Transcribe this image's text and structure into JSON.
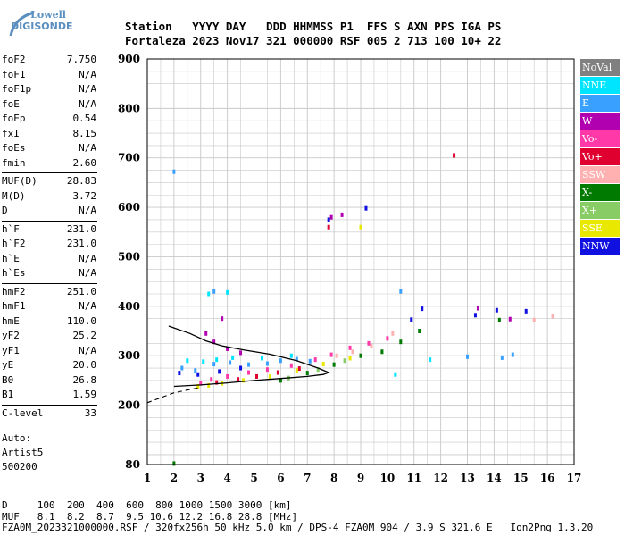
{
  "logo": {
    "brand": "Lowell",
    "product": "DIGISONDE"
  },
  "header": {
    "line1": "Station   YYYY DAY   DDD HHMMSS P1  FFS S AXN PPS IGA PS",
    "line2": "Fortaleza 2023 Nov17 321 000000 RSF 005 2 713 100 10+ 22"
  },
  "params": {
    "group1": [
      {
        "label": "foF2",
        "value": "7.750"
      },
      {
        "label": "foF1",
        "value": "N/A"
      },
      {
        "label": "foF1p",
        "value": "N/A"
      },
      {
        "label": "foE",
        "value": "N/A"
      },
      {
        "label": "foEp",
        "value": "0.54"
      },
      {
        "label": "fxI",
        "value": "8.15"
      },
      {
        "label": "foEs",
        "value": "N/A"
      },
      {
        "label": "fmin",
        "value": "2.60"
      }
    ],
    "group2": [
      {
        "label": "MUF(D)",
        "value": "28.83"
      },
      {
        "label": "M(D)",
        "value": "3.72"
      },
      {
        "label": "D",
        "value": "N/A"
      }
    ],
    "group3": [
      {
        "label": "h`F",
        "value": "231.0"
      },
      {
        "label": "h`F2",
        "value": "231.0"
      },
      {
        "label": "h`E",
        "value": "N/A"
      },
      {
        "label": "h`Es",
        "value": "N/A"
      }
    ],
    "group4": [
      {
        "label": "hmF2",
        "value": "251.0"
      },
      {
        "label": "hmF1",
        "value": "N/A"
      },
      {
        "label": "hmE",
        "value": "110.0"
      },
      {
        "label": "yF2",
        "value": "25.2"
      },
      {
        "label": "yF1",
        "value": "N/A"
      },
      {
        "label": "yE",
        "value": "20.0"
      },
      {
        "label": "B0",
        "value": "26.8"
      },
      {
        "label": "B1",
        "value": "1.59"
      }
    ],
    "group5": [
      {
        "label": "C-level",
        "value": "33"
      }
    ],
    "auto": [
      "Auto:",
      "Artist5",
      "500200"
    ]
  },
  "legend": [
    {
      "name": "NoVal",
      "color": "#808080"
    },
    {
      "name": "NNE",
      "color": "#00e5ff"
    },
    {
      "name": "E",
      "color": "#3aa0ff"
    },
    {
      "name": "W",
      "color": "#b000b0"
    },
    {
      "name": "Vo-",
      "color": "#ff3aa8"
    },
    {
      "name": "Vo+",
      "color": "#e00030"
    },
    {
      "name": "SSW",
      "color": "#ffb0b0"
    },
    {
      "name": "X-",
      "color": "#007a00"
    },
    {
      "name": "X+",
      "color": "#88cc66"
    },
    {
      "name": "SSE",
      "color": "#e8e800"
    },
    {
      "name": "NNW",
      "color": "#1010e0"
    }
  ],
  "footer": {
    "d_line": "D     100  200  400  600  800 1000 1500 3000 [km]",
    "muf_line": "MUF   8.1  8.2  8.7  9.5 10.6 12.2 16.8 28.8 [MHz]",
    "file_line": "FZA0M_2023321000000.RSF / 320fx256h 50 kHz 5.0 km / DPS-4 FZA0M 904 / 3.9 S 321.6 E   Ion2Png 1.3.20"
  },
  "chart_data": {
    "type": "scatter",
    "title": "",
    "xlabel": "",
    "ylabel": "",
    "xlim": [
      1,
      17
    ],
    "ylim": [
      80,
      900
    ],
    "x_ticks": [
      "1",
      "2",
      "3",
      "4",
      "5",
      "6",
      "7",
      "8",
      "9",
      "10",
      "11",
      "12",
      "13",
      "14",
      "15",
      "16",
      "17"
    ],
    "y_ticks": [
      "80",
      "200",
      "300",
      "400",
      "500",
      "600",
      "700",
      "800",
      "900"
    ],
    "y_tick_values": [
      80,
      200,
      300,
      400,
      500,
      600,
      700,
      800,
      900
    ],
    "grid": true,
    "legend_position": "right",
    "series": [
      {
        "name": "NNE",
        "points": [
          [
            2.5,
            290
          ],
          [
            3.1,
            288
          ],
          [
            3.6,
            292
          ],
          [
            4.2,
            296
          ],
          [
            5.3,
            295
          ],
          [
            6.4,
            300
          ],
          [
            3.3,
            425
          ],
          [
            4.0,
            428
          ],
          [
            11.6,
            292
          ],
          [
            10.3,
            262
          ]
        ]
      },
      {
        "name": "E",
        "points": [
          [
            2.3,
            275
          ],
          [
            2.8,
            270
          ],
          [
            3.5,
            283
          ],
          [
            4.1,
            286
          ],
          [
            4.8,
            282
          ],
          [
            5.5,
            284
          ],
          [
            6.0,
            290
          ],
          [
            6.6,
            293
          ],
          [
            7.1,
            289
          ],
          [
            2.0,
            672
          ],
          [
            3.5,
            430
          ],
          [
            13.0,
            298
          ],
          [
            14.3,
            296
          ],
          [
            14.7,
            302
          ],
          [
            10.5,
            430
          ]
        ]
      },
      {
        "name": "W",
        "points": [
          [
            3.2,
            345
          ],
          [
            3.5,
            328
          ],
          [
            4.0,
            314
          ],
          [
            4.5,
            306
          ],
          [
            3.8,
            375
          ],
          [
            7.9,
            580
          ],
          [
            8.3,
            585
          ],
          [
            13.4,
            396
          ],
          [
            14.6,
            374
          ]
        ]
      },
      {
        "name": "Vo-",
        "points": [
          [
            3.0,
            244
          ],
          [
            3.4,
            252
          ],
          [
            4.0,
            258
          ],
          [
            4.8,
            266
          ],
          [
            5.5,
            272
          ],
          [
            6.4,
            280
          ],
          [
            7.3,
            292
          ],
          [
            7.9,
            302
          ],
          [
            8.6,
            316
          ],
          [
            9.3,
            325
          ],
          [
            10.0,
            335
          ]
        ]
      },
      {
        "name": "Vo+",
        "points": [
          [
            3.6,
            246
          ],
          [
            4.4,
            252
          ],
          [
            5.1,
            258
          ],
          [
            5.9,
            266
          ],
          [
            6.7,
            274
          ],
          [
            12.5,
            705
          ],
          [
            7.8,
            560
          ]
        ]
      },
      {
        "name": "SSW",
        "points": [
          [
            8.1,
            300
          ],
          [
            8.7,
            308
          ],
          [
            9.4,
            320
          ],
          [
            10.2,
            345
          ],
          [
            15.5,
            372
          ],
          [
            16.2,
            380
          ]
        ]
      },
      {
        "name": "X-",
        "points": [
          [
            2.0,
            82
          ],
          [
            6.0,
            250
          ],
          [
            7.0,
            265
          ],
          [
            8.0,
            282
          ],
          [
            9.0,
            300
          ],
          [
            9.8,
            308
          ],
          [
            10.5,
            328
          ],
          [
            11.2,
            350
          ],
          [
            14.2,
            372
          ]
        ]
      },
      {
        "name": "X+",
        "points": [
          [
            6.3,
            255
          ],
          [
            7.4,
            272
          ],
          [
            8.4,
            290
          ]
        ]
      },
      {
        "name": "SSE",
        "points": [
          [
            2.9,
            238
          ],
          [
            3.3,
            240
          ],
          [
            3.8,
            244
          ],
          [
            4.6,
            250
          ],
          [
            5.6,
            258
          ],
          [
            6.6,
            270
          ],
          [
            7.6,
            283
          ],
          [
            8.6,
            295
          ],
          [
            9.0,
            560
          ]
        ]
      },
      {
        "name": "NNW",
        "points": [
          [
            2.2,
            265
          ],
          [
            2.9,
            262
          ],
          [
            3.7,
            268
          ],
          [
            4.5,
            275
          ],
          [
            7.8,
            575
          ],
          [
            9.2,
            598
          ],
          [
            10.9,
            373
          ],
          [
            11.3,
            395
          ],
          [
            13.3,
            382
          ],
          [
            14.1,
            392
          ],
          [
            15.2,
            390
          ]
        ]
      }
    ]
  }
}
